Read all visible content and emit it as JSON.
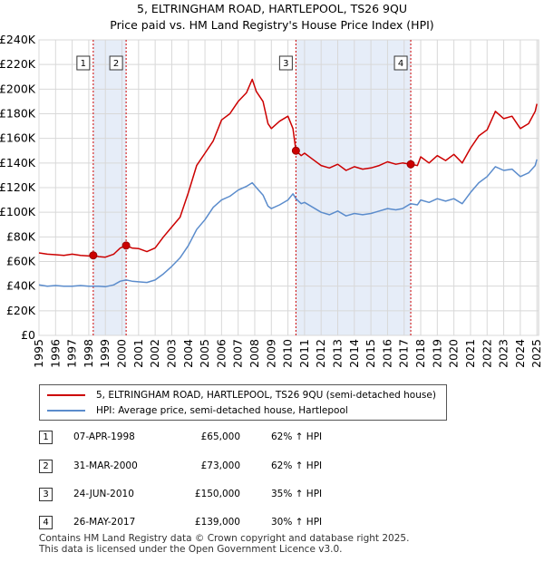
{
  "chart_data": {
    "type": "line",
    "title": "5, ELTRINGHAM ROAD, HARTLEPOOL, TS26 9QU",
    "subtitle": "Price paid vs. HM Land Registry's House Price Index (HPI)",
    "x_tick_labels": [
      "1995",
      "1996",
      "1997",
      "1998",
      "1999",
      "2000",
      "2001",
      "2002",
      "2003",
      "2004",
      "2005",
      "2006",
      "2007",
      "2008",
      "2009",
      "2010",
      "2011",
      "2012",
      "2013",
      "2014",
      "2015",
      "2016",
      "2017",
      "2018",
      "2019",
      "2020",
      "2021",
      "2022",
      "2023",
      "2024",
      "2025"
    ],
    "y_tick_labels": [
      "£0",
      "£20K",
      "£40K",
      "£60K",
      "£80K",
      "£100K",
      "£120K",
      "£140K",
      "£160K",
      "£180K",
      "£200K",
      "£220K",
      "£240K"
    ],
    "xlim": [
      1995,
      2025.1
    ],
    "ylim": [
      0,
      240000
    ],
    "grid": true,
    "colors": {
      "property": "#cc0000",
      "hpi": "#5b8ccc",
      "shade": "#dce6f5",
      "vline": "#cc0000",
      "grid": "#d8d8d8"
    },
    "series": [
      {
        "name": "5, ELTRINGHAM ROAD, HARTLEPOOL, TS26 9QU (semi-detached house)",
        "color": "#cc0000",
        "points": [
          [
            1995.0,
            67000
          ],
          [
            1995.5,
            66000
          ],
          [
            1996.0,
            65500
          ],
          [
            1996.5,
            65000
          ],
          [
            1997.0,
            66000
          ],
          [
            1997.5,
            65000
          ],
          [
            1998.0,
            64500
          ],
          [
            1998.27,
            65000
          ],
          [
            1998.6,
            64000
          ],
          [
            1999.0,
            63500
          ],
          [
            1999.5,
            66000
          ],
          [
            1999.9,
            71000
          ],
          [
            2000.25,
            73000
          ],
          [
            2000.6,
            71000
          ],
          [
            2001.0,
            70500
          ],
          [
            2001.5,
            68000
          ],
          [
            2002.0,
            71000
          ],
          [
            2002.5,
            80000
          ],
          [
            2003.0,
            88000
          ],
          [
            2003.5,
            96000
          ],
          [
            2004.0,
            116000
          ],
          [
            2004.5,
            138000
          ],
          [
            2005.0,
            148000
          ],
          [
            2005.5,
            158000
          ],
          [
            2006.0,
            175000
          ],
          [
            2006.5,
            180000
          ],
          [
            2007.0,
            190000
          ],
          [
            2007.5,
            197000
          ],
          [
            2007.85,
            208000
          ],
          [
            2008.1,
            198000
          ],
          [
            2008.5,
            190000
          ],
          [
            2008.8,
            172000
          ],
          [
            2009.0,
            168000
          ],
          [
            2009.5,
            174000
          ],
          [
            2010.0,
            178000
          ],
          [
            2010.3,
            168000
          ],
          [
            2010.48,
            150000
          ],
          [
            2010.8,
            146000
          ],
          [
            2011.0,
            148000
          ],
          [
            2011.5,
            143000
          ],
          [
            2012.0,
            138000
          ],
          [
            2012.5,
            136000
          ],
          [
            2013.0,
            139000
          ],
          [
            2013.5,
            134000
          ],
          [
            2014.0,
            137000
          ],
          [
            2014.5,
            135000
          ],
          [
            2015.0,
            136000
          ],
          [
            2015.5,
            138000
          ],
          [
            2016.0,
            141000
          ],
          [
            2016.5,
            139000
          ],
          [
            2016.9,
            140000
          ],
          [
            2017.4,
            139000
          ],
          [
            2017.8,
            138000
          ],
          [
            2018.0,
            145000
          ],
          [
            2018.5,
            140000
          ],
          [
            2019.0,
            146000
          ],
          [
            2019.5,
            142000
          ],
          [
            2020.0,
            147000
          ],
          [
            2020.5,
            140000
          ],
          [
            2021.0,
            152000
          ],
          [
            2021.5,
            162000
          ],
          [
            2022.0,
            167000
          ],
          [
            2022.5,
            182000
          ],
          [
            2023.0,
            176000
          ],
          [
            2023.5,
            178000
          ],
          [
            2024.0,
            168000
          ],
          [
            2024.5,
            172000
          ],
          [
            2024.9,
            182000
          ],
          [
            2025.0,
            188000
          ]
        ]
      },
      {
        "name": "HPI: Average price, semi-detached house, Hartlepool",
        "color": "#5b8ccc",
        "points": [
          [
            1995.0,
            41000
          ],
          [
            1995.5,
            40000
          ],
          [
            1996.0,
            40500
          ],
          [
            1996.5,
            40000
          ],
          [
            1997.0,
            40000
          ],
          [
            1997.5,
            40500
          ],
          [
            1998.0,
            40000
          ],
          [
            1998.27,
            40000
          ],
          [
            1998.6,
            40000
          ],
          [
            1999.0,
            39500
          ],
          [
            1999.5,
            41000
          ],
          [
            1999.9,
            44000
          ],
          [
            2000.25,
            45000
          ],
          [
            2000.6,
            44000
          ],
          [
            2001.0,
            43500
          ],
          [
            2001.5,
            43000
          ],
          [
            2002.0,
            45000
          ],
          [
            2002.5,
            50000
          ],
          [
            2003.0,
            56000
          ],
          [
            2003.5,
            63000
          ],
          [
            2004.0,
            73000
          ],
          [
            2004.5,
            86000
          ],
          [
            2005.0,
            94000
          ],
          [
            2005.5,
            104000
          ],
          [
            2006.0,
            110000
          ],
          [
            2006.5,
            113000
          ],
          [
            2007.0,
            118000
          ],
          [
            2007.5,
            121000
          ],
          [
            2007.85,
            124000
          ],
          [
            2008.1,
            120000
          ],
          [
            2008.5,
            114000
          ],
          [
            2008.8,
            105000
          ],
          [
            2009.0,
            103000
          ],
          [
            2009.5,
            106000
          ],
          [
            2010.0,
            110000
          ],
          [
            2010.3,
            115000
          ],
          [
            2010.48,
            111000
          ],
          [
            2010.8,
            107000
          ],
          [
            2011.0,
            108000
          ],
          [
            2011.5,
            104000
          ],
          [
            2012.0,
            100000
          ],
          [
            2012.5,
            98000
          ],
          [
            2013.0,
            101000
          ],
          [
            2013.5,
            97000
          ],
          [
            2014.0,
            99000
          ],
          [
            2014.5,
            98000
          ],
          [
            2015.0,
            99000
          ],
          [
            2015.5,
            101000
          ],
          [
            2016.0,
            103000
          ],
          [
            2016.5,
            102000
          ],
          [
            2016.9,
            103000
          ],
          [
            2017.4,
            107000
          ],
          [
            2017.8,
            106000
          ],
          [
            2018.0,
            110000
          ],
          [
            2018.5,
            108000
          ],
          [
            2019.0,
            111000
          ],
          [
            2019.5,
            109000
          ],
          [
            2020.0,
            111000
          ],
          [
            2020.5,
            107000
          ],
          [
            2021.0,
            116000
          ],
          [
            2021.5,
            124000
          ],
          [
            2022.0,
            129000
          ],
          [
            2022.5,
            137000
          ],
          [
            2023.0,
            134000
          ],
          [
            2023.5,
            135000
          ],
          [
            2024.0,
            129000
          ],
          [
            2024.5,
            132000
          ],
          [
            2024.9,
            138000
          ],
          [
            2025.0,
            143000
          ]
        ]
      }
    ],
    "sales": [
      {
        "label": "1",
        "x": 1998.27,
        "y": 65000
      },
      {
        "label": "2",
        "x": 2000.25,
        "y": 73000
      },
      {
        "label": "3",
        "x": 2010.48,
        "y": 150000
      },
      {
        "label": "4",
        "x": 2017.4,
        "y": 139000
      }
    ],
    "shaded_ranges": [
      [
        1998.27,
        2000.25
      ],
      [
        2010.48,
        2017.4
      ]
    ]
  },
  "legend": {
    "property_label": "5, ELTRINGHAM ROAD, HARTLEPOOL, TS26 9QU (semi-detached house)",
    "hpi_label": "HPI: Average price, semi-detached house, Hartlepool"
  },
  "sales_table": [
    {
      "num": "1",
      "date": "07-APR-1998",
      "price": "£65,000",
      "hpi": "62% ↑ HPI"
    },
    {
      "num": "2",
      "date": "31-MAR-2000",
      "price": "£73,000",
      "hpi": "62% ↑ HPI"
    },
    {
      "num": "3",
      "date": "24-JUN-2010",
      "price": "£150,000",
      "hpi": "35% ↑ HPI"
    },
    {
      "num": "4",
      "date": "26-MAY-2017",
      "price": "£139,000",
      "hpi": "30% ↑ HPI"
    }
  ],
  "footer": {
    "line1": "Contains HM Land Registry data © Crown copyright and database right 2025.",
    "line2": "This data is licensed under the Open Government Licence v3.0."
  }
}
